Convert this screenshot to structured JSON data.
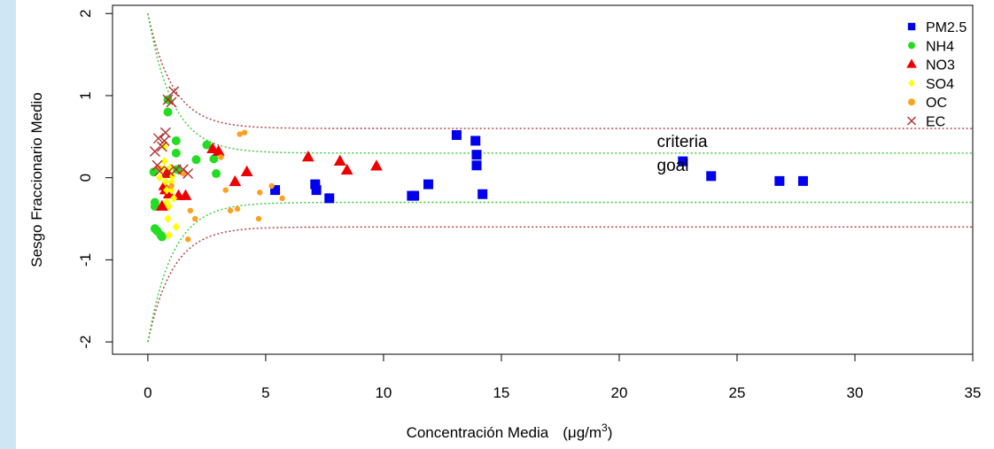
{
  "chart_data": {
    "type": "scatter",
    "xlabel": "Concentración Media",
    "xlabel_unit_prefix": "μg/m",
    "xlabel_unit_sup": "3",
    "ylabel": "Sesgo Fraccionario Medio",
    "xlim": [
      -1.5,
      35
    ],
    "ylim": [
      -2.15,
      2.1
    ],
    "x_ticks": [
      0,
      5,
      10,
      15,
      20,
      25,
      30,
      35
    ],
    "y_ticks": [
      -2,
      -1,
      0,
      1,
      2
    ],
    "grid": false,
    "legend_position": "top-right",
    "annotations": [
      {
        "text": "criteria",
        "x": 21.6,
        "y": 0.45
      },
      {
        "text": "goal",
        "x": 21.6,
        "y": 0.16
      }
    ],
    "reference_curves": [
      {
        "label": "criteria",
        "color": "#b03a3a",
        "asymptote": 0.6
      },
      {
        "label": "goal",
        "color": "#33cc33",
        "asymptote": 0.3
      }
    ],
    "series": [
      {
        "name": "PM2.5",
        "color": "#0000ee",
        "marker": "square",
        "points": [
          [
            5.4,
            -0.15
          ],
          [
            7.1,
            -0.08
          ],
          [
            7.15,
            -0.15
          ],
          [
            7.7,
            -0.25
          ],
          [
            11.2,
            -0.22
          ],
          [
            11.3,
            -0.22
          ],
          [
            11.9,
            -0.08
          ],
          [
            13.1,
            0.52
          ],
          [
            13.9,
            0.45
          ],
          [
            13.95,
            0.28
          ],
          [
            13.95,
            0.15
          ],
          [
            14.2,
            -0.2
          ],
          [
            22.7,
            0.2
          ],
          [
            23.9,
            0.02
          ],
          [
            26.8,
            -0.04
          ],
          [
            27.8,
            -0.04
          ]
        ]
      },
      {
        "name": "NH4",
        "color": "#22dd22",
        "marker": "circle",
        "points": [
          [
            0.25,
            0.07
          ],
          [
            0.3,
            -0.3
          ],
          [
            0.3,
            -0.35
          ],
          [
            0.3,
            -0.62
          ],
          [
            0.4,
            -0.65
          ],
          [
            0.55,
            -0.7
          ],
          [
            0.6,
            -0.72
          ],
          [
            0.85,
            0.95
          ],
          [
            0.85,
            0.8
          ],
          [
            1.2,
            0.45
          ],
          [
            1.2,
            0.3
          ],
          [
            1.25,
            0.1
          ],
          [
            2.05,
            0.22
          ],
          [
            2.5,
            0.4
          ],
          [
            2.8,
            0.23
          ],
          [
            2.9,
            0.05
          ]
        ]
      },
      {
        "name": "NO3",
        "color": "#ee0000",
        "marker": "triangle",
        "points": [
          [
            0.6,
            -0.35
          ],
          [
            0.7,
            -0.1
          ],
          [
            0.75,
            -0.15
          ],
          [
            0.8,
            0.05
          ],
          [
            0.9,
            -0.2
          ],
          [
            1.3,
            -0.22
          ],
          [
            1.6,
            -0.22
          ],
          [
            2.75,
            0.35
          ],
          [
            3.0,
            0.32
          ],
          [
            3.7,
            -0.05
          ],
          [
            4.2,
            0.07
          ],
          [
            6.8,
            0.25
          ],
          [
            8.15,
            0.2
          ],
          [
            8.45,
            0.09
          ],
          [
            9.7,
            0.14
          ]
        ]
      },
      {
        "name": "SO4",
        "color": "#ffff00",
        "marker": "diamond",
        "points": [
          [
            0.5,
            0.0
          ],
          [
            0.6,
            0.1
          ],
          [
            0.7,
            0.2
          ],
          [
            0.7,
            0.38
          ],
          [
            0.75,
            -0.05
          ],
          [
            0.8,
            -0.15
          ],
          [
            0.8,
            -0.3
          ],
          [
            0.85,
            -0.5
          ],
          [
            0.9,
            -0.35
          ],
          [
            0.9,
            -0.7
          ],
          [
            0.95,
            0.12
          ],
          [
            1.0,
            -0.05
          ],
          [
            1.0,
            -0.15
          ],
          [
            1.05,
            0.02
          ],
          [
            1.1,
            -0.25
          ],
          [
            1.2,
            -0.6
          ]
        ]
      },
      {
        "name": "OC",
        "color": "#ffa020",
        "marker": "circle",
        "points": [
          [
            0.45,
            0.12
          ],
          [
            1.0,
            -0.1
          ],
          [
            1.5,
            0.05
          ],
          [
            1.7,
            -0.75
          ],
          [
            1.8,
            -0.4
          ],
          [
            2.0,
            -0.5
          ],
          [
            3.1,
            0.25
          ],
          [
            3.3,
            -0.15
          ],
          [
            3.5,
            -0.4
          ],
          [
            3.8,
            -0.38
          ],
          [
            3.9,
            0.53
          ],
          [
            4.1,
            0.55
          ],
          [
            4.7,
            -0.5
          ],
          [
            4.75,
            -0.18
          ],
          [
            5.25,
            -0.1
          ],
          [
            5.7,
            -0.25
          ]
        ]
      },
      {
        "name": "EC",
        "color": "#b03030",
        "marker": "x",
        "points": [
          [
            0.3,
            0.32
          ],
          [
            0.4,
            0.15
          ],
          [
            0.45,
            0.48
          ],
          [
            0.5,
            0.08
          ],
          [
            0.6,
            0.38
          ],
          [
            0.7,
            0.45
          ],
          [
            0.75,
            0.55
          ],
          [
            0.85,
            0.95
          ],
          [
            1.0,
            0.92
          ],
          [
            1.1,
            1.05
          ],
          [
            1.2,
            0.1
          ],
          [
            1.5,
            0.1
          ],
          [
            1.7,
            0.05
          ],
          [
            0.9,
            0.08
          ]
        ]
      }
    ]
  }
}
